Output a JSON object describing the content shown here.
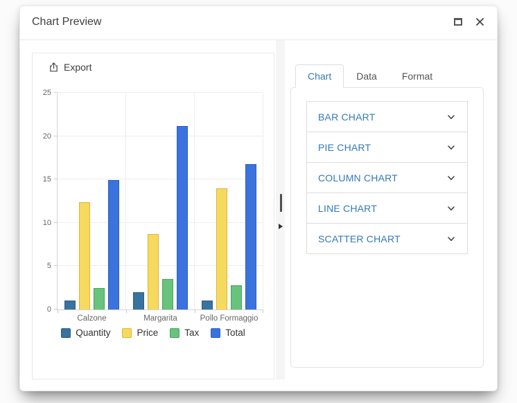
{
  "window": {
    "title": "Chart Preview",
    "controls": {
      "maximize_icon": "maximize-icon",
      "close_icon": "close-icon"
    }
  },
  "left_panel": {
    "export_label": "Export",
    "export_icon": "export-upload-icon"
  },
  "splitter": {
    "handle_icon": "drag-handle-icon",
    "collapse_icon": "triangle-right-icon"
  },
  "right_panel": {
    "tabs": [
      {
        "label": "Chart",
        "active": true
      },
      {
        "label": "Data",
        "active": false
      },
      {
        "label": "Format",
        "active": false
      }
    ],
    "chart_types": [
      "BAR CHART",
      "PIE CHART",
      "COLUMN CHART",
      "LINE CHART",
      "SCATTER CHART"
    ],
    "chevron_icon": "chevron-down-icon",
    "accent_color": "#337ab7"
  },
  "chart_data": {
    "type": "bar",
    "title": "",
    "categories": [
      "Calzone",
      "Margarita",
      "Pollo Formaggio"
    ],
    "series": [
      {
        "name": "Quantity",
        "color": "#39739f",
        "border": "#2d5d84",
        "values": [
          1,
          2,
          1
        ]
      },
      {
        "name": "Price",
        "color": "#f6d95f",
        "border": "#dcb53c",
        "values": [
          12.4,
          8.7,
          14
        ]
      },
      {
        "name": "Tax",
        "color": "#68c47c",
        "border": "#4aa05e",
        "values": [
          2.5,
          3.5,
          2.8
        ]
      },
      {
        "name": "Total",
        "color": "#3b73de",
        "border": "#2a5dc0",
        "values": [
          14.9,
          21.2,
          16.8
        ]
      }
    ],
    "ylim": [
      0,
      25
    ],
    "yticks": [
      0,
      5,
      10,
      15,
      20,
      25
    ],
    "grid": true,
    "legend_position": "bottom"
  }
}
